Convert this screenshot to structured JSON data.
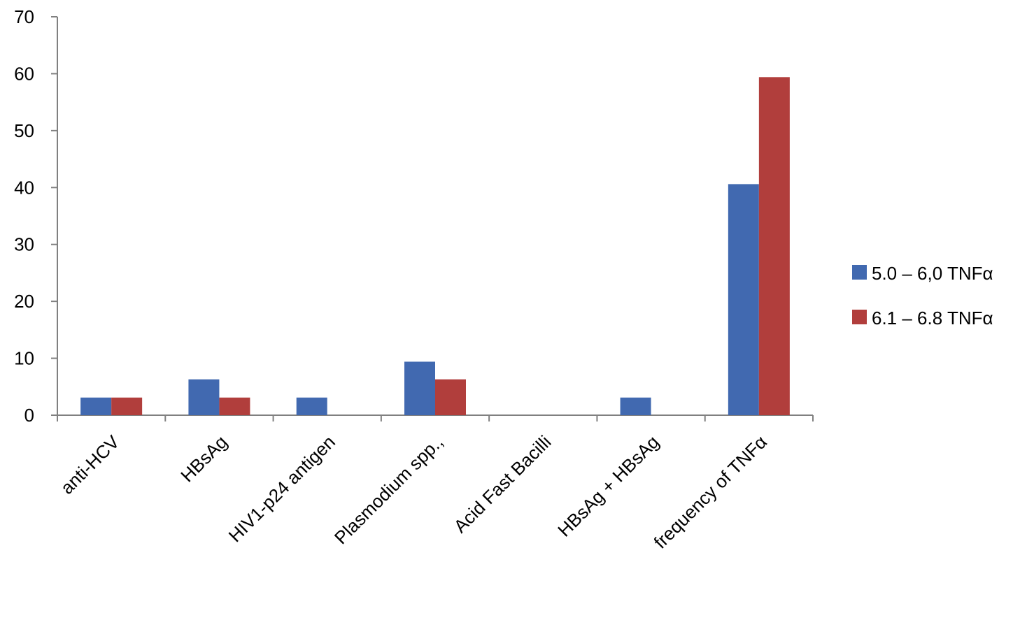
{
  "chart_data": {
    "type": "bar",
    "categories": [
      "anti-HCV",
      "HBsAg",
      "HIV1-p24 antigen",
      "Plasmodium spp.,",
      "Acid Fast Bacilli",
      "HBsAg + HBsAg",
      "frequency of TNFα"
    ],
    "series": [
      {
        "name": "5.0 – 6,0 TNFα",
        "color": "#4169b0",
        "values": [
          3.1,
          6.3,
          3.1,
          9.4,
          0,
          3.1,
          40.6
        ]
      },
      {
        "name": "6.1 – 6.8 TNFα",
        "color": "#b13e3c",
        "values": [
          3.1,
          3.1,
          0,
          6.3,
          0,
          0,
          59.4
        ]
      }
    ],
    "yticks": [
      "0",
      "10",
      "20",
      "30",
      "40",
      "50",
      "60",
      "70"
    ],
    "ylim": [
      0,
      70
    ],
    "legend_position": "right",
    "grid": false
  }
}
